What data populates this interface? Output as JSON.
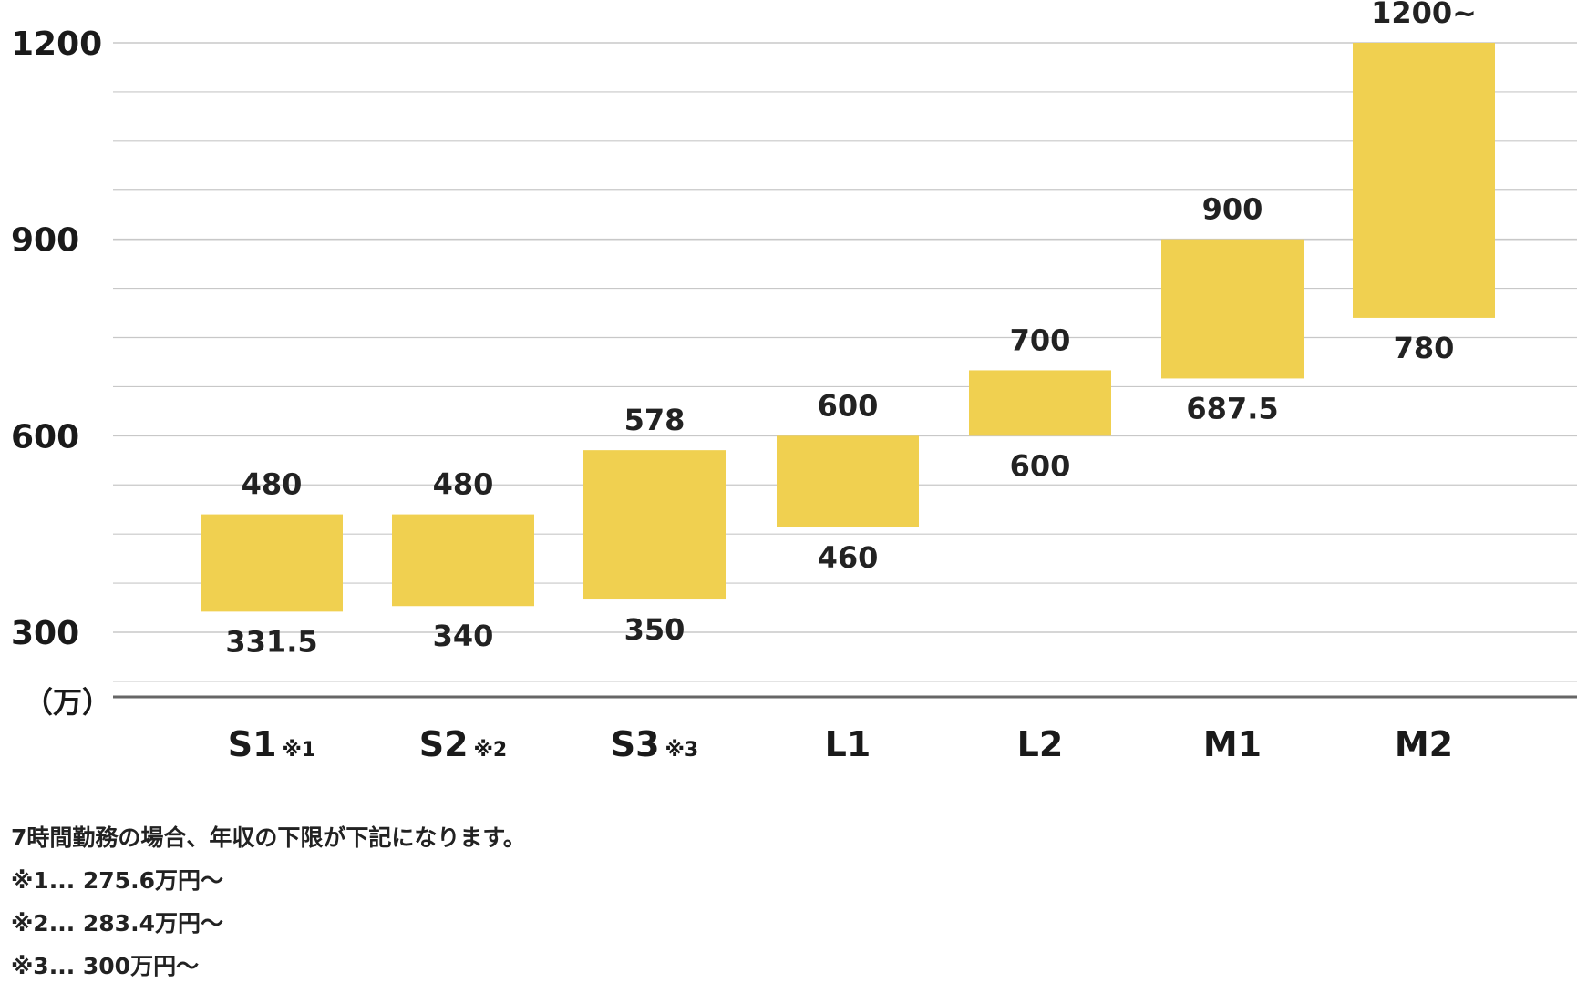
{
  "chart_data": {
    "type": "bar",
    "subtype": "floating-range",
    "title": "",
    "xlabel": "",
    "ylabel": "",
    "unit_label": "（万）",
    "ylim": [
      200,
      1200
    ],
    "yticks": [
      "300",
      "600",
      "900",
      "1200"
    ],
    "grid": true,
    "legend": "none",
    "bar_color": "#F0D050",
    "grid_color": "#C8C8C8",
    "axis_color": "#666666",
    "categories": [
      {
        "name": "S1",
        "note": "※1"
      },
      {
        "name": "S2",
        "note": "※2"
      },
      {
        "name": "S3",
        "note": "※3"
      },
      {
        "name": "L1",
        "note": ""
      },
      {
        "name": "L2",
        "note": ""
      },
      {
        "name": "M1",
        "note": ""
      },
      {
        "name": "M2",
        "note": ""
      }
    ],
    "series": [
      {
        "low": [
          331.5,
          340,
          350,
          460,
          600,
          687.5,
          780
        ],
        "high": [
          480,
          480,
          578,
          600,
          700,
          900,
          1200
        ],
        "low_labels": [
          "331.5",
          "340",
          "350",
          "460",
          "600",
          "687.5",
          "780"
        ],
        "high_labels": [
          "480",
          "480",
          "578",
          "600",
          "700",
          "900",
          "1200~"
        ]
      }
    ]
  },
  "notes": [
    "7時間勤務の場合、年収の下限が下記になります。",
    "※1... 275.6万円〜",
    "※2... 283.4万円〜",
    "※3... 300万円〜"
  ]
}
